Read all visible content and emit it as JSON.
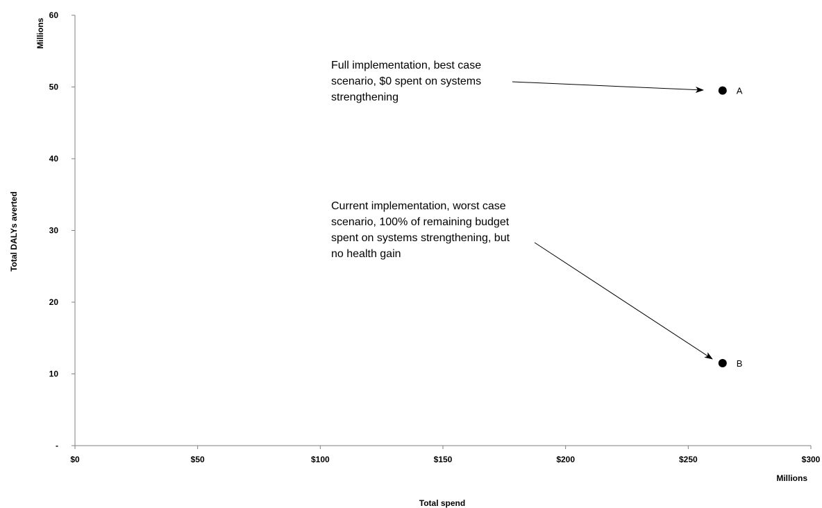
{
  "chart_data": {
    "type": "scatter",
    "xlabel": "Total spend",
    "ylabel": "Total DALYs averted",
    "x_unit": "Millions",
    "y_unit": "Millions",
    "xlim": [
      0,
      300
    ],
    "ylim": [
      0,
      60
    ],
    "x_ticks": [
      0,
      50,
      100,
      150,
      200,
      250,
      300
    ],
    "x_tick_labels": [
      "$0",
      "$50",
      "$100",
      "$150",
      "$200",
      "$250",
      "$300"
    ],
    "y_ticks": [
      0,
      10,
      20,
      30,
      40,
      50,
      60
    ],
    "y_tick_labels": [
      "-",
      "10",
      "20",
      "30",
      "40",
      "50",
      "60"
    ],
    "grid": false,
    "points": [
      {
        "label": "A",
        "x": 264,
        "y": 49.5
      },
      {
        "label": "B",
        "x": 264,
        "y": 11.5
      }
    ],
    "annotations": [
      {
        "target": "A",
        "lines": [
          "Full implementation, best case",
          "scenario, $0 spent on systems",
          "strengthening"
        ]
      },
      {
        "target": "B",
        "lines": [
          "Current implementation, worst case",
          "scenario, 100% of remaining budget",
          "spent on systems strengthening, but",
          "no health gain"
        ]
      }
    ]
  },
  "colors": {
    "axis": "#7f7f7f",
    "marker": "#000000",
    "text": "#000000"
  }
}
